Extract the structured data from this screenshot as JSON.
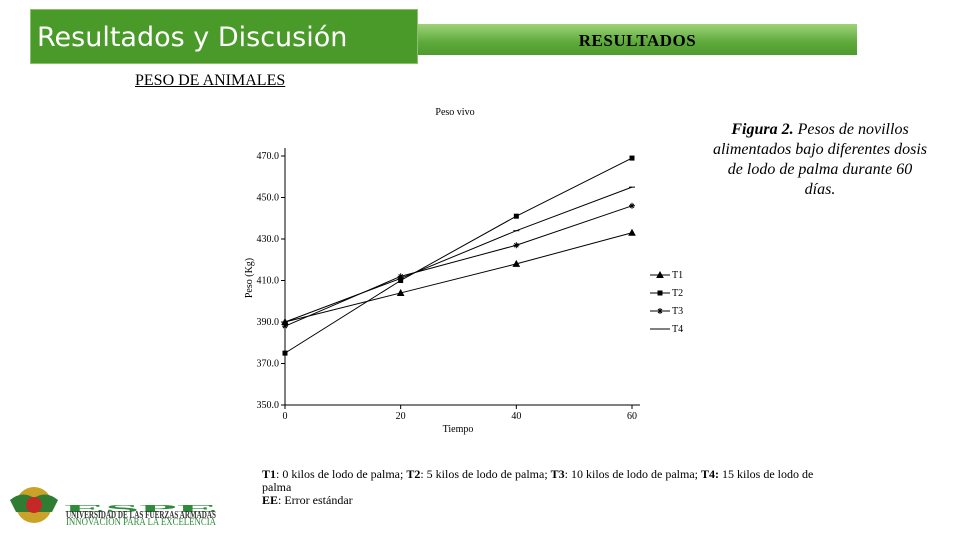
{
  "header": {
    "title": "Resultados y Discusión",
    "banner": "RESULTADOS"
  },
  "section": "PESO DE ANIMALES",
  "caption": {
    "label": "Figura 2.",
    "text": " Pesos de novillos alimentados bajo diferentes dosis de lodo de palma durante 60 días."
  },
  "footnote": [
    {
      "key": "T1",
      "text": ": 0 kilos de lodo de palma; "
    },
    {
      "key": "T2",
      "text": ": 5 kilos de lodo de palma; "
    },
    {
      "key": "T3",
      "text": ": 10 kilos de lodo de palma; "
    },
    {
      "key": "T4:",
      "text": " 15 kilos de lodo de palma"
    }
  ],
  "footnote_ee": {
    "key": "EE",
    "text": ": Error estándar"
  },
  "logo": {
    "name": "ESPE",
    "line1": "UNIVERSIDAD DE LAS FUERZAS ARMADAS",
    "line2": "INNOVACIÓN PARA LA EXCELENCIA"
  },
  "chart_data": {
    "type": "line",
    "title": "Peso vivo",
    "x_label": "Tiempo",
    "y_label": "Peso (Kg)",
    "x": [
      0,
      20,
      40,
      60
    ],
    "xlim": [
      0,
      60
    ],
    "xticks": [
      0,
      20,
      40,
      60
    ],
    "ylim": [
      350,
      470
    ],
    "yticks": [
      {
        "value": 350,
        "label": "350.0"
      },
      {
        "value": 370,
        "label": "370.0"
      },
      {
        "value": 390,
        "label": "390.0"
      },
      {
        "value": 410,
        "label": "410.0"
      },
      {
        "value": 430,
        "label": "430.0"
      },
      {
        "value": 450,
        "label": "450.0"
      },
      {
        "value": 470,
        "label": "470.0"
      }
    ],
    "legend": "right",
    "series": [
      {
        "name": "T1",
        "color": "#000000",
        "marker": "triangle",
        "values": [
          390,
          404,
          418,
          433
        ]
      },
      {
        "name": "T2",
        "color": "#000000",
        "marker": "square",
        "values": [
          375,
          410,
          441,
          469
        ]
      },
      {
        "name": "T3",
        "color": "#000000",
        "marker": "star",
        "values": [
          388,
          412,
          427,
          446
        ]
      },
      {
        "name": "T4",
        "color": "#000000",
        "marker": "dash",
        "values": [
          390,
          411,
          434,
          455
        ]
      }
    ]
  }
}
